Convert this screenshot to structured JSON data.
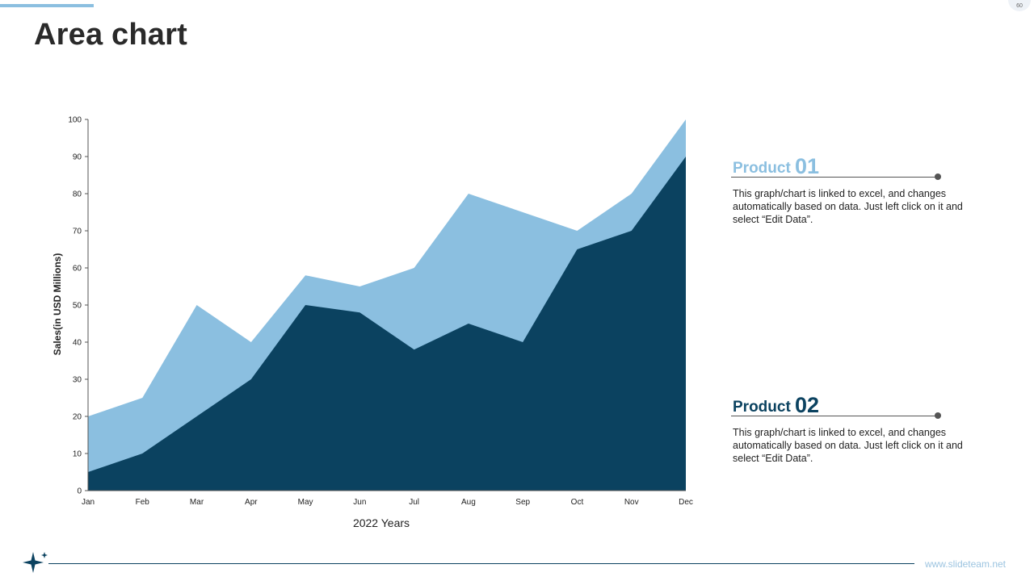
{
  "slide": {
    "title": "Area chart",
    "page_number": "60",
    "footer_url": "www.slideteam.net",
    "accent_color": "#8bbfe0",
    "dark_color": "#0b4260"
  },
  "products": [
    {
      "name": "Product",
      "number": "01",
      "color": "#8bbfe0",
      "description": "This graph/chart is linked to excel, and changes automatically based on data. Just left click on it and select “Edit Data”."
    },
    {
      "name": "Product",
      "number": "02",
      "color": "#0b4260",
      "description": "This graph/chart is linked to excel, and changes automatically based on data. Just left click on it and select “Edit Data”."
    }
  ],
  "chart_data": {
    "type": "area",
    "title": "",
    "xlabel": "2022 Years",
    "ylabel": "Sales(in USD Millions)",
    "ylim": [
      0,
      100
    ],
    "yticks": [
      0,
      10,
      20,
      30,
      40,
      50,
      60,
      70,
      80,
      90,
      100
    ],
    "categories": [
      "Jan",
      "Feb",
      "Mar",
      "Apr",
      "May",
      "Jun",
      "Jul",
      "Aug",
      "Sep",
      "Oct",
      "Nov",
      "Dec"
    ],
    "series": [
      {
        "name": "Product 01",
        "color": "#8bbfe0",
        "values": [
          20,
          25,
          50,
          40,
          58,
          55,
          60,
          80,
          75,
          70,
          80,
          100
        ]
      },
      {
        "name": "Product 02",
        "color": "#0b4260",
        "values": [
          5,
          10,
          20,
          30,
          50,
          48,
          38,
          45,
          40,
          65,
          70,
          90
        ]
      }
    ],
    "grid": false
  }
}
